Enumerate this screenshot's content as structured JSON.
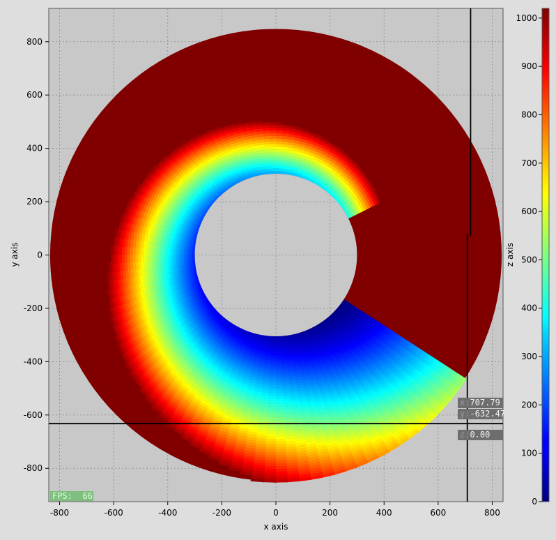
{
  "chart_data": {
    "type": "heatmap",
    "title": "",
    "xlabel": "x axis",
    "ylabel": "y axis",
    "zlabel": "z axis",
    "xlim": [
      -840,
      840
    ],
    "ylim": [
      -925,
      925
    ],
    "zlim": [
      0,
      1020
    ],
    "x_ticks": [
      -800,
      -600,
      -400,
      -200,
      0,
      200,
      400,
      600,
      800
    ],
    "y_ticks": [
      -800,
      -600,
      -400,
      -200,
      0,
      200,
      400,
      600,
      800
    ],
    "z_ticks": [
      0,
      100,
      200,
      300,
      400,
      500,
      600,
      700,
      800,
      900,
      1000
    ],
    "grid": true,
    "colormap": "jet",
    "annulus": {
      "inner_radius": 300,
      "outer_radius": 835
    },
    "description_values": {
      "saturated_value": 1020,
      "low_value_edge_angle_deg": -33
    },
    "crosshair": {
      "x": 707.79,
      "y": -632.47,
      "z": 0.0
    }
  },
  "overlay": {
    "fps_label": "FPS:",
    "fps_value": "66",
    "readout_x_prefix": "x:",
    "readout_x_value": "707.79",
    "readout_y_prefix": "y:",
    "readout_y_value": "-632.47",
    "readout_z_prefix": "z:",
    "readout_z_value": "0.00"
  },
  "colors": {
    "plot_background": "#c8c8c8",
    "grid": "#8a8a8a",
    "saturated": "#800000",
    "crosshair": "#000000"
  }
}
